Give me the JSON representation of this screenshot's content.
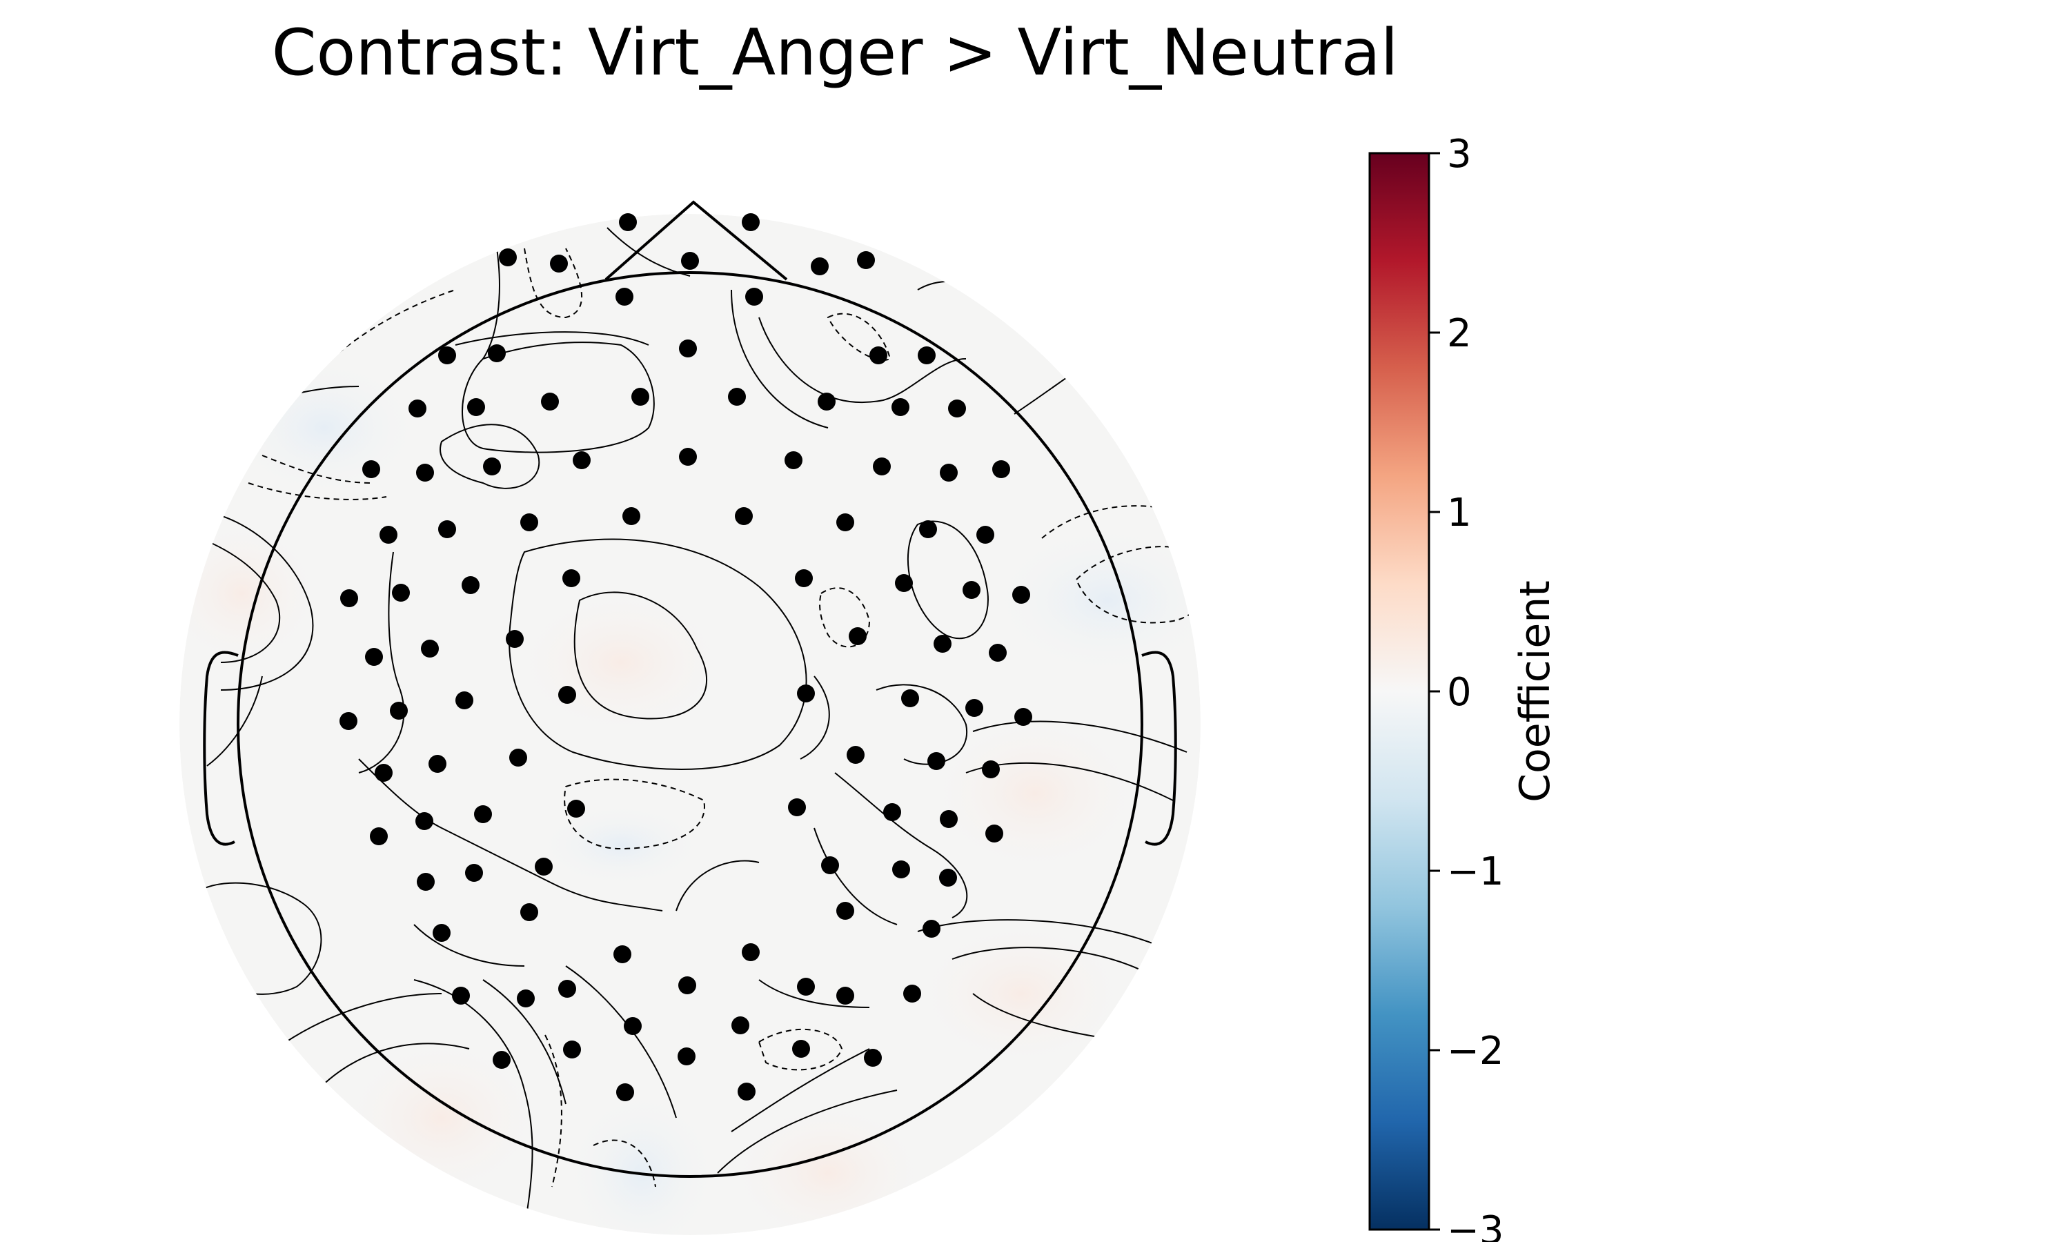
{
  "chart_data": {
    "type": "topomap",
    "title": "Contrast: Virt_Anger > Virt_Neutral",
    "colorbar": {
      "label": "Coefficient",
      "vmin": -3,
      "vmax": 3,
      "ticks": [
        3,
        2,
        1,
        0,
        -1,
        -2,
        -3
      ],
      "tick_labels": [
        "3",
        "2",
        "1",
        "0",
        "−1",
        "−2",
        "−3"
      ],
      "colormap": "RdBu_r",
      "colors": [
        "#053061",
        "#2166ac",
        "#4393c3",
        "#92c5de",
        "#d1e5f0",
        "#f7f7f7",
        "#fddbc7",
        "#f4a582",
        "#d6604d",
        "#b2182b",
        "#67001f"
      ]
    },
    "values_approx": {
      "central_max": 0.15,
      "left_lateral": 0.1,
      "right_lateral": -0.08,
      "posterior_midline": -0.1,
      "frontal_left": -0.12
    },
    "sensor_count": 128,
    "contours": true,
    "head_outline": true
  }
}
